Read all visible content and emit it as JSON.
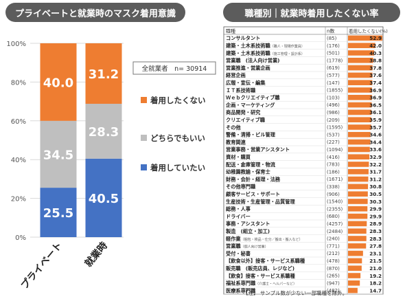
{
  "left_title": "プライベートと就業時のマスク着用意識",
  "right_title": "職種別｜就業時着用したくない率",
  "sample_label": "全就業者　n= 30914",
  "note": "【注】 サンプル数が少ない一部職種を除外。",
  "colors": {
    "orange": "#ee7d31",
    "gray": "#bfbfbf",
    "blue": "#4472c4",
    "title_bg": "#5c5c5c"
  },
  "chart_data": [
    {
      "type": "bar",
      "stacked": true,
      "title": "プライベートと就業時のマスク着用意識",
      "categories": [
        "プライベート",
        "就業時"
      ],
      "series": [
        {
          "name": "着用していたい",
          "values": [
            25.5,
            40.5
          ],
          "color": "#4472c4"
        },
        {
          "name": "どちらでもいい",
          "values": [
            34.5,
            28.3
          ],
          "color": "#bfbfbf"
        },
        {
          "name": "着用したくない",
          "values": [
            40.0,
            31.2
          ],
          "color": "#ee7d31"
        }
      ],
      "yticks": [
        "0%",
        "20%",
        "40%",
        "60%",
        "80%",
        "100%"
      ],
      "ylim": [
        0,
        100
      ],
      "legend": "right"
    },
    {
      "type": "table",
      "title": "職種別｜就業時着用したくない率",
      "columns": [
        "職種",
        "n数",
        "着用したくない(%)"
      ],
      "rows": [
        {
          "name": "コンサルタント",
          "sub": "",
          "n": "(85)",
          "value": 52.9
        },
        {
          "name": "建築・土木系技術職",
          "sub": "（職人・現場作業員）",
          "n": "(176)",
          "value": 42.0
        },
        {
          "name": "建築・土木系技術職",
          "sub": "（施工管理・設計系）",
          "n": "(501)",
          "value": 40.3
        },
        {
          "name": "営業職　(法人向け営業)",
          "sub": "",
          "n": "(1778)",
          "value": 38.8
        },
        {
          "name": "営業推進・営業企画",
          "sub": "",
          "n": "(619)",
          "value": 37.8
        },
        {
          "name": "経営企画",
          "sub": "",
          "n": "(577)",
          "value": 37.6
        },
        {
          "name": "広報・宣伝・編集",
          "sub": "",
          "n": "(147)",
          "value": 37.4
        },
        {
          "name": "ＩＴ系技術職",
          "sub": "",
          "n": "(1855)",
          "value": 36.9
        },
        {
          "name": "Ｗｅｂクリエイティブ職",
          "sub": "",
          "n": "(103)",
          "value": 36.9
        },
        {
          "name": "企画・マーケティング",
          "sub": "",
          "n": "(496)",
          "value": 36.5
        },
        {
          "name": "商品開発・研究",
          "sub": "",
          "n": "(986)",
          "value": 36.1
        },
        {
          "name": "クリエイティブ職",
          "sub": "",
          "n": "(209)",
          "value": 35.9
        },
        {
          "name": "その他",
          "sub": "",
          "n": "(1595)",
          "value": 35.7
        },
        {
          "name": "警備・清掃・ビル管理",
          "sub": "",
          "n": "(537)",
          "value": 34.6
        },
        {
          "name": "教育関連",
          "sub": "",
          "n": "(227)",
          "value": 34.4
        },
        {
          "name": "営業事務・営業アシスタント",
          "sub": "",
          "n": "(1094)",
          "value": 33.6
        },
        {
          "name": "資材・購買",
          "sub": "",
          "n": "(416)",
          "value": 32.9
        },
        {
          "name": "配送・倉庫管理・物流",
          "sub": "",
          "n": "(783)",
          "value": 32.2
        },
        {
          "name": "幼稚園教諭・保育士",
          "sub": "",
          "n": "(186)",
          "value": 31.7
        },
        {
          "name": "財務・会計・経理・法務",
          "sub": "",
          "n": "(1671)",
          "value": 31.2
        },
        {
          "name": "その他専門職",
          "sub": "",
          "n": "(338)",
          "value": 30.8
        },
        {
          "name": "顧客サービス・サポート",
          "sub": "",
          "n": "(906)",
          "value": 30.5
        },
        {
          "name": "生産技術・生産管理・品質管理",
          "sub": "",
          "n": "(1540)",
          "value": 30.3
        },
        {
          "name": "総務・人事",
          "sub": "",
          "n": "(2355)",
          "value": 29.9
        },
        {
          "name": "ドライバー",
          "sub": "",
          "n": "(680)",
          "value": 29.9
        },
        {
          "name": "事務・アシスタント",
          "sub": "",
          "n": "(4257)",
          "value": 28.9
        },
        {
          "name": "製造　(組立・加工)",
          "sub": "",
          "n": "(2484)",
          "value": 28.3
        },
        {
          "name": "軽作業",
          "sub": "（梱包・検品・仕分／搬出・搬入など）",
          "n": "(240)",
          "value": 28.3
        },
        {
          "name": "営業職",
          "sub": "（個人向け営業）",
          "n": "(771)",
          "value": 27.8
        },
        {
          "name": "受付・秘書",
          "sub": "",
          "n": "(212)",
          "value": 23.1
        },
        {
          "name": "【飲食以外】接客・サービス系職種",
          "sub": "",
          "n": "(478)",
          "value": 21.5
        },
        {
          "name": "販売職　(販売店員、レジなど)",
          "sub": "",
          "n": "(870)",
          "value": 21.0
        },
        {
          "name": "【飲食】接客・サービス系職種",
          "sub": "",
          "n": "(265)",
          "value": 19.2
        },
        {
          "name": "福祉系専門職",
          "sub": "（介護士・ヘルパーなど）",
          "n": "(947)",
          "value": 18.2
        },
        {
          "name": "医療系専門職",
          "sub": "",
          "n": "(482)",
          "value": 14.7
        }
      ],
      "bar_max": 52.9
    }
  ]
}
